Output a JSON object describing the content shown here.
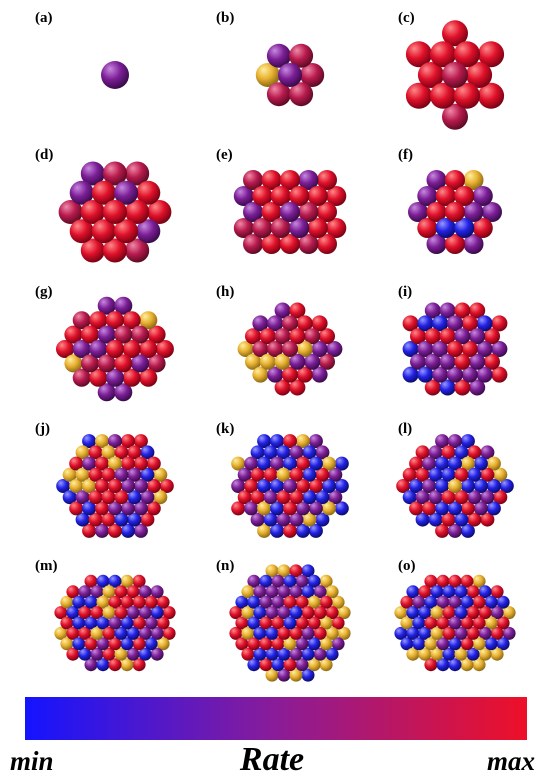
{
  "panels": [
    "(a)",
    "(b)",
    "(c)",
    "(d)",
    "(e)",
    "(f)",
    "(g)",
    "(h)",
    "(i)",
    "(j)",
    "(k)",
    "(l)",
    "(m)",
    "(n)",
    "(o)"
  ],
  "colorbar": {
    "min_label": "min",
    "title": "Rate",
    "max_label": "max"
  }
}
